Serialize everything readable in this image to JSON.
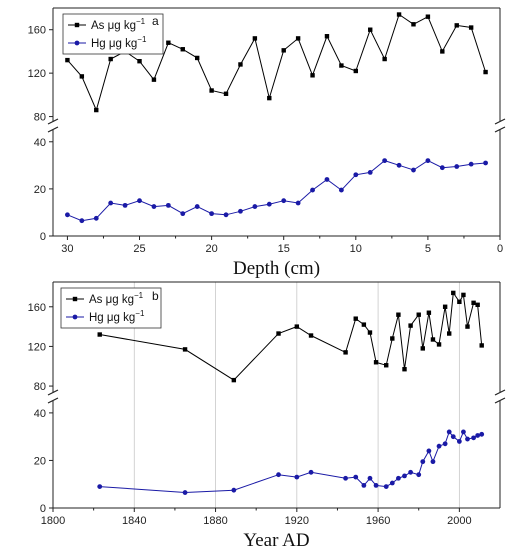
{
  "chart_data": [
    {
      "type": "line",
      "panel_label": "a",
      "xlabel": "Depth (cm)",
      "x_reversed": true,
      "xlim": [
        31,
        0
      ],
      "x_ticks": [
        30,
        25,
        20,
        15,
        10,
        5,
        0
      ],
      "y_axis_break": true,
      "ylim_upper": [
        75,
        180
      ],
      "y_ticks_upper": [
        80,
        120,
        160
      ],
      "ylim_lower": [
        0,
        45
      ],
      "y_ticks_lower": [
        0,
        20,
        40
      ],
      "legend": [
        {
          "label": "As μg kg",
          "sup": "−1",
          "marker": "square",
          "color": "#000000"
        },
        {
          "label": "Hg μg kg",
          "sup": "−1",
          "marker": "circle",
          "color": "#1a1aa6"
        }
      ],
      "series": [
        {
          "name": "As μg kg⁻¹",
          "x": [
            30,
            29,
            28,
            27,
            26,
            25,
            24,
            23,
            22,
            21,
            20,
            19,
            18,
            17,
            16,
            15,
            14,
            13,
            12,
            11,
            10,
            9,
            8,
            7,
            6,
            5,
            4,
            3,
            2,
            1
          ],
          "y": [
            132,
            117,
            86,
            133,
            140,
            131,
            114,
            148,
            142,
            134,
            104,
            101,
            128,
            152,
            97,
            141,
            152,
            118,
            154,
            127,
            122,
            160,
            133,
            174,
            165,
            172,
            140,
            164,
            162,
            121
          ]
        },
        {
          "name": "Hg μg kg⁻¹",
          "x": [
            30,
            29,
            28,
            27,
            26,
            25,
            24,
            23,
            22,
            21,
            20,
            19,
            18,
            17,
            16,
            15,
            14,
            13,
            12,
            11,
            10,
            9,
            8,
            7,
            6,
            5,
            4,
            3,
            2,
            1
          ],
          "y": [
            9,
            6.5,
            7.5,
            14,
            13,
            15,
            12.5,
            13,
            9.5,
            12.5,
            9.5,
            9,
            10.5,
            12.5,
            13.5,
            15,
            14,
            19.5,
            24,
            19.5,
            26,
            27,
            32,
            30,
            28,
            32,
            29,
            29.5,
            30.5,
            31
          ]
        }
      ]
    },
    {
      "type": "line",
      "panel_label": "b",
      "xlabel": "Year AD",
      "xlim": [
        1800,
        2020
      ],
      "x_ticks": [
        1800,
        1840,
        1880,
        1920,
        1960,
        2000
      ],
      "x_gridlines": [
        1840,
        1880,
        1920,
        1960,
        2000
      ],
      "y_axis_break": true,
      "ylim_upper": [
        73,
        185
      ],
      "y_ticks_upper": [
        80,
        120,
        160
      ],
      "ylim_lower": [
        0,
        45
      ],
      "y_ticks_lower": [
        0,
        20,
        40
      ],
      "legend": [
        {
          "label": "As μg kg",
          "sup": "−1",
          "marker": "square",
          "color": "#000000"
        },
        {
          "label": "Hg μg kg",
          "sup": "−1",
          "marker": "circle",
          "color": "#1a1aa6"
        }
      ],
      "series": [
        {
          "name": "As μg kg⁻¹",
          "x": [
            1823,
            1865,
            1889,
            1911,
            1920,
            1927,
            1944,
            1949,
            1953,
            1956,
            1959,
            1964,
            1967,
            1970,
            1973,
            1976,
            1980,
            1982,
            1985,
            1987,
            1990,
            1993,
            1995,
            1997,
            2000,
            2002,
            2004,
            2007,
            2009,
            2011
          ],
          "y": [
            132,
            117,
            86,
            133,
            140,
            131,
            114,
            148,
            142,
            134,
            104,
            101,
            128,
            152,
            97,
            141,
            152,
            118,
            154,
            127,
            122,
            160,
            133,
            174,
            165,
            172,
            140,
            164,
            162,
            121
          ]
        },
        {
          "name": "Hg μg kg⁻¹",
          "x": [
            1823,
            1865,
            1889,
            1911,
            1920,
            1927,
            1944,
            1949,
            1953,
            1956,
            1959,
            1964,
            1967,
            1970,
            1973,
            1976,
            1980,
            1982,
            1985,
            1987,
            1990,
            1993,
            1995,
            1997,
            2000,
            2002,
            2004,
            2007,
            2009,
            2011
          ],
          "y": [
            9,
            6.5,
            7.5,
            14,
            13,
            15,
            12.5,
            13,
            9.5,
            12.5,
            9.5,
            9,
            10.5,
            12.5,
            13.5,
            15,
            14,
            19.5,
            24,
            19.5,
            26,
            27,
            32,
            30,
            28,
            32,
            29,
            29.5,
            30.5,
            31
          ]
        }
      ]
    }
  ]
}
